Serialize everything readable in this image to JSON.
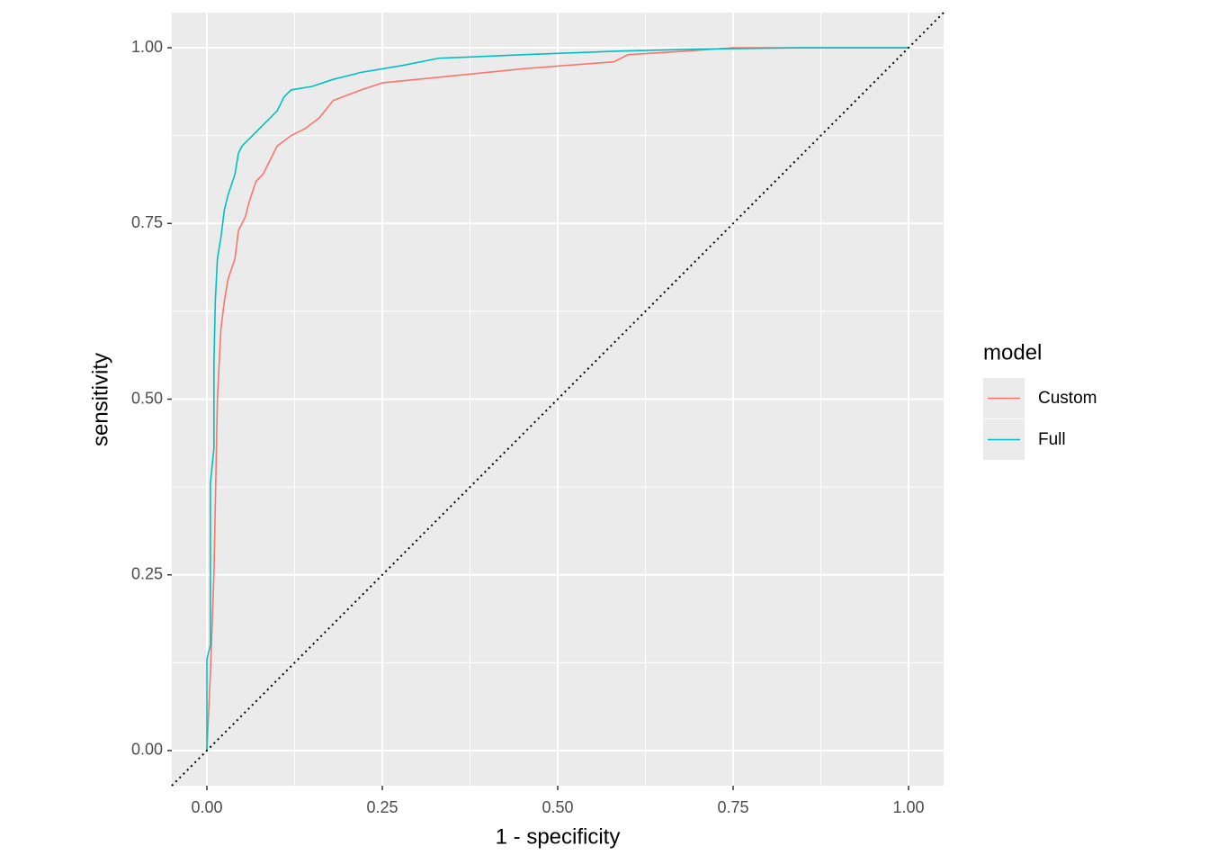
{
  "chart_data": {
    "type": "line",
    "x_label": "1 - specificity",
    "y_label": "sensitivity",
    "legend_title": "model",
    "legend_position": "right",
    "xlim": [
      -0.05,
      1.05
    ],
    "ylim": [
      -0.05,
      1.05
    ],
    "xticks": [
      {
        "value": 0,
        "label": "0.00"
      },
      {
        "value": 0.25,
        "label": "0.25"
      },
      {
        "value": 0.5,
        "label": "0.50"
      },
      {
        "value": 0.75,
        "label": "0.75"
      },
      {
        "value": 1,
        "label": "1.00"
      }
    ],
    "yticks": [
      {
        "value": 0,
        "label": "0.00"
      },
      {
        "value": 0.25,
        "label": "0.25"
      },
      {
        "value": 0.5,
        "label": "0.50"
      },
      {
        "value": 0.75,
        "label": "0.75"
      },
      {
        "value": 1,
        "label": "1.00"
      }
    ],
    "grid": true,
    "minor_grid": true,
    "diagonal": true,
    "series": [
      {
        "name": "Custom",
        "color": "#F8766D",
        "x": [
          0,
          0.005,
          0.01,
          0.012,
          0.015,
          0.02,
          0.025,
          0.03,
          0.04,
          0.045,
          0.055,
          0.06,
          0.07,
          0.08,
          0.09,
          0.1,
          0.12,
          0.14,
          0.16,
          0.18,
          0.22,
          0.25,
          0.35,
          0.45,
          0.58,
          0.6,
          0.68,
          0.75,
          1
        ],
        "values": [
          0,
          0.11,
          0.25,
          0.35,
          0.5,
          0.6,
          0.64,
          0.67,
          0.7,
          0.74,
          0.76,
          0.78,
          0.81,
          0.82,
          0.84,
          0.86,
          0.875,
          0.885,
          0.9,
          0.925,
          0.94,
          0.95,
          0.96,
          0.97,
          0.98,
          0.99,
          0.995,
          1,
          1
        ]
      },
      {
        "name": "Full",
        "color": "#00BFC4",
        "x": [
          0,
          0,
          0.005,
          0.005,
          0.01,
          0.01,
          0.012,
          0.015,
          0.02,
          0.025,
          0.03,
          0.04,
          0.045,
          0.05,
          0.06,
          0.07,
          0.08,
          0.09,
          0.1,
          0.11,
          0.12,
          0.15,
          0.18,
          0.22,
          0.28,
          0.33,
          0.45,
          0.58,
          0.7,
          0.85,
          1
        ],
        "values": [
          0,
          0.13,
          0.15,
          0.38,
          0.43,
          0.55,
          0.64,
          0.7,
          0.73,
          0.77,
          0.79,
          0.82,
          0.85,
          0.86,
          0.87,
          0.88,
          0.89,
          0.9,
          0.91,
          0.93,
          0.94,
          0.945,
          0.955,
          0.965,
          0.975,
          0.985,
          0.99,
          0.995,
          0.998,
          1,
          1
        ]
      }
    ]
  }
}
